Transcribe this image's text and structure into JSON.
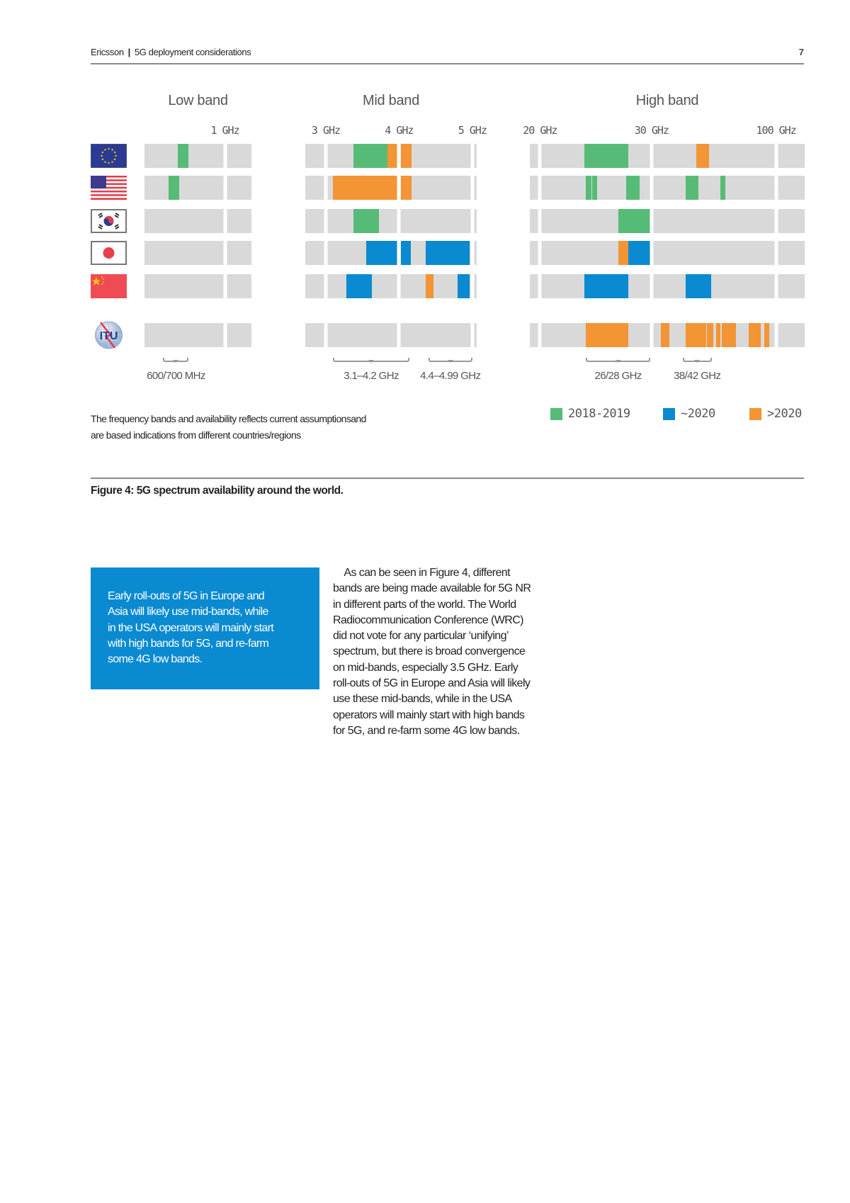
{
  "header": {
    "brand": "Ericsson",
    "separator": "|",
    "title": "5G deployment considerations",
    "page_number": "7"
  },
  "colors": {
    "2018-2019": "#57bb78",
    "~2020": "#0a8ad0",
    ">2020": "#f39435",
    "unallocated": "#d9d9d9"
  },
  "chart_data": {
    "type": "table",
    "title": "",
    "regions": [
      {
        "id": "eu",
        "icon": "eu-flag-icon"
      },
      {
        "id": "usa",
        "icon": "us-flag-icon"
      },
      {
        "id": "korea",
        "icon": "south-korea-flag-icon"
      },
      {
        "id": "japan",
        "icon": "japan-flag-icon"
      },
      {
        "id": "china",
        "icon": "china-flag-icon"
      },
      {
        "id": "itu",
        "icon": "itu-logo-icon"
      }
    ],
    "bands": [
      {
        "id": "low",
        "title": "Low band",
        "unit": "GHz",
        "ticks": [
          {
            "value": 1,
            "label": "1 GHz"
          }
        ],
        "brackets": [
          {
            "from": 0.54,
            "to": 0.73,
            "label": "600/700 MHz"
          }
        ],
        "rows": {
          "eu": [
            {
              "from": 0.65,
              "to": 0.73,
              "period": "2018-2019"
            }
          ],
          "usa": [
            {
              "from": 0.58,
              "to": 0.66,
              "period": "2018-2019"
            }
          ],
          "korea": [],
          "japan": [],
          "china": [],
          "itu": []
        }
      },
      {
        "id": "mid",
        "title": "Mid band",
        "unit": "GHz",
        "ticks": [
          {
            "value": 3,
            "label": "3 GHz"
          },
          {
            "value": 4,
            "label": "4 GHz"
          },
          {
            "value": 5,
            "label": "5 GHz"
          }
        ],
        "brackets": [
          {
            "from": 3.1,
            "to": 4.14,
            "label": "3.1–4.2 GHz"
          },
          {
            "from": 4.4,
            "to": 5.0,
            "label": "4.4–4.99 GHz"
          }
        ],
        "rows": {
          "eu": [
            {
              "from": 3.38,
              "to": 3.84,
              "period": "2018-2019"
            },
            {
              "from": 3.84,
              "to": 3.98,
              "period": ">2020"
            },
            {
              "from": 4.03,
              "to": 4.17,
              "period": ">2020"
            }
          ],
          "usa": [
            {
              "from": 3.1,
              "to": 3.98,
              "period": ">2020"
            },
            {
              "from": 4.03,
              "to": 4.17,
              "period": ">2020"
            }
          ],
          "korea": [
            {
              "from": 3.38,
              "to": 3.73,
              "period": "2018-2019"
            }
          ],
          "japan": [
            {
              "from": 3.55,
              "to": 3.98,
              "period": "~2020"
            },
            {
              "from": 4.03,
              "to": 4.16,
              "period": "~2020"
            },
            {
              "from": 4.36,
              "to": 4.96,
              "period": "~2020"
            }
          ],
          "china": [
            {
              "from": 3.28,
              "to": 3.63,
              "period": "~2020"
            },
            {
              "from": 4.36,
              "to": 4.47,
              "period": ">2020"
            },
            {
              "from": 4.8,
              "to": 4.96,
              "period": "~2020"
            }
          ],
          "itu": []
        }
      },
      {
        "id": "high",
        "title": "High band",
        "unit": "GHz",
        "ticks": [
          {
            "value": 20,
            "label": "20 GHz"
          },
          {
            "value": 30,
            "label": "30 GHz"
          },
          {
            "value": 100,
            "label": "100 GHz"
          }
        ],
        "brackets": [
          {
            "from": 24.1,
            "to": 29.9,
            "label": "26/28 GHz"
          },
          {
            "from": 47.5,
            "to": 63.8,
            "label": "38/42 GHz"
          }
        ],
        "rows": {
          "eu": [
            {
              "from": 24.0,
              "to": 27.9,
              "period": "2018-2019"
            },
            {
              "from": 55.2,
              "to": 62.5,
              "period": ">2020"
            }
          ],
          "usa": [
            {
              "from": 24.1,
              "to": 24.6,
              "period": "2018-2019"
            },
            {
              "from": 24.7,
              "to": 25.1,
              "period": "2018-2019"
            },
            {
              "from": 27.7,
              "to": 28.9,
              "period": "2018-2019"
            },
            {
              "from": 49.2,
              "to": 56.4,
              "period": "2018-2019"
            },
            {
              "from": 68.5,
              "to": 71.4,
              "period": "2018-2019"
            }
          ],
          "korea": [
            {
              "from": 27.0,
              "to": 29.9,
              "period": "2018-2019"
            }
          ],
          "japan": [
            {
              "from": 27.0,
              "to": 27.9,
              "period": ">2020"
            },
            {
              "from": 27.9,
              "to": 29.9,
              "period": "~2020"
            }
          ],
          "china": [
            {
              "from": 24.0,
              "to": 27.9,
              "period": "~2020"
            },
            {
              "from": 49.2,
              "to": 63.7,
              "period": "~2020"
            }
          ],
          "itu": [
            {
              "from": 24.1,
              "to": 27.9,
              "period": ">2020"
            },
            {
              "from": 35.3,
              "to": 40.0,
              "period": ">2020"
            },
            {
              "from": 49.2,
              "to": 60.6,
              "period": ">2020"
            },
            {
              "from": 61.2,
              "to": 64.8,
              "period": ">2020"
            },
            {
              "from": 66.3,
              "to": 68.8,
              "period": ">2020"
            },
            {
              "from": 69.3,
              "to": 77.3,
              "period": ">2020"
            },
            {
              "from": 84.7,
              "to": 91.5,
              "period": ">2020"
            },
            {
              "from": 93.2,
              "to": 96.3,
              "period": ">2020"
            }
          ]
        }
      }
    ],
    "legend": [
      "2018-2019",
      "~2020",
      ">2020"
    ],
    "legend_placement": "bottom-right"
  },
  "figure": {
    "footnote_lines": [
      "The frequency bands and availability reflects current assumptionsand",
      "are based indications from different countries/regions"
    ],
    "caption": "Figure 4: 5G spectrum availability around the world."
  },
  "callout": {
    "lines": [
      "Early roll-outs of 5G in Europe and",
      "Asia will likely use mid-bands, while",
      "in the USA operators will mainly start",
      "with high bands for 5G, and re-farm",
      "some 4G low bands."
    ]
  },
  "body": {
    "lines": [
      "    As can be seen in Figure 4, different",
      "bands are being made available for 5G NR",
      "in different parts of the world. The World",
      "Radiocommunication Conference (WRC)",
      "did not vote for any particular ‘unifying’",
      "spectrum, but there is broad convergence",
      "on mid-bands, especially 3.5 GHz. Early",
      "roll-outs of 5G in Europe and Asia will likely",
      "use these mid-bands, while in the USA",
      "operators will mainly start with high bands",
      "for 5G, and re-farm some 4G low bands."
    ]
  }
}
